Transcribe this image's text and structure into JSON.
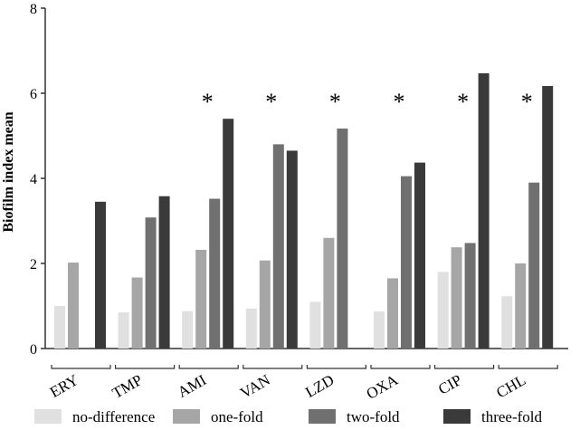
{
  "chart_data": {
    "type": "bar",
    "y_label": "Biofilm index mean",
    "categories": [
      "ERY",
      "TMP",
      "AMI",
      "VAN",
      "LZD",
      "OXA",
      "CIP",
      "CHL"
    ],
    "markers": [
      null,
      null,
      "*",
      "*",
      "*",
      "*",
      "*",
      "*"
    ],
    "series": [
      {
        "name": "no-difference",
        "color": "#e0e0e0",
        "values": [
          1.0,
          0.85,
          0.88,
          0.94,
          1.1,
          0.87,
          1.8,
          1.23
        ]
      },
      {
        "name": "one-fold",
        "color": "#a6a6a6",
        "values": [
          2.02,
          1.67,
          2.32,
          2.07,
          2.6,
          1.65,
          2.38,
          2.0
        ]
      },
      {
        "name": "two-fold",
        "color": "#707070",
        "values": [
          null,
          3.08,
          3.52,
          4.8,
          5.17,
          4.05,
          2.48,
          3.9
        ]
      },
      {
        "name": "three-fold",
        "color": "#3a3a3a",
        "values": [
          3.45,
          3.58,
          5.4,
          4.65,
          null,
          4.37,
          6.47,
          6.17
        ]
      }
    ],
    "ylim": [
      0,
      8
    ],
    "yticks": [
      0,
      2,
      4,
      6,
      8
    ]
  }
}
